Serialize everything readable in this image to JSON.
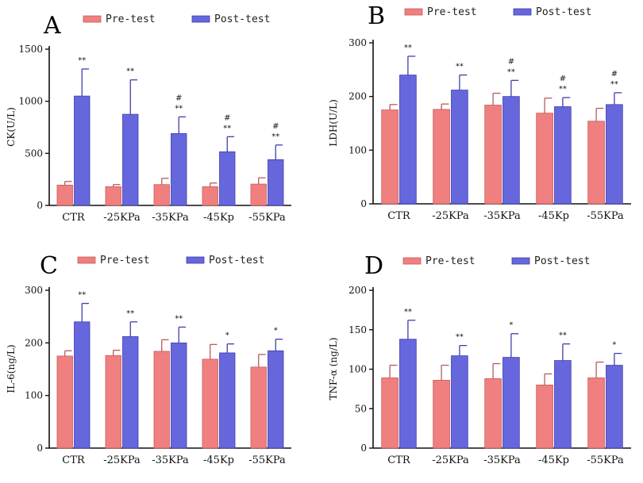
{
  "colors": {
    "pre_fill": "#f07f7f",
    "pre_stroke": "#c95c5c",
    "post_fill": "#6666dd",
    "post_stroke": "#3f3fae",
    "error_pre": "#b45c5c",
    "error_post": "#3f3fae",
    "axis": "#111111"
  },
  "legend": {
    "pre": "Pre-test",
    "post": "Post-test"
  },
  "chart_data": [
    {
      "panel": "A",
      "type": "bar",
      "ylabel": "CK(U/L)",
      "ylim": [
        0,
        1500
      ],
      "yticks": [
        0,
        500,
        1000,
        1500
      ],
      "categories": [
        "CTR",
        "-25KPa",
        "-35KPa",
        "-45Kp",
        "-55KPa"
      ],
      "series": [
        {
          "name": "Pre-test",
          "values": [
            195,
            180,
            200,
            180,
            205
          ],
          "errors": [
            35,
            20,
            60,
            35,
            60
          ]
        },
        {
          "name": "Post-test",
          "values": [
            1050,
            875,
            690,
            515,
            440
          ],
          "errors": [
            260,
            330,
            160,
            145,
            140
          ]
        }
      ],
      "annotations": [
        [
          "**"
        ],
        [
          "**"
        ],
        [
          "#",
          "**"
        ],
        [
          "#",
          "**"
        ],
        [
          "#",
          "**"
        ]
      ]
    },
    {
      "panel": "B",
      "type": "bar",
      "ylabel": "LDH(U/L)",
      "ylim": [
        0,
        300
      ],
      "yticks": [
        0,
        100,
        200,
        300
      ],
      "categories": [
        "CTR",
        "-25KPa",
        "-35KPa",
        "-45Kp",
        "-55KPa"
      ],
      "series": [
        {
          "name": "Pre-test",
          "values": [
            175,
            176,
            184,
            169,
            154
          ],
          "errors": [
            10,
            10,
            22,
            28,
            24
          ]
        },
        {
          "name": "Post-test",
          "values": [
            240,
            212,
            200,
            181,
            185
          ],
          "errors": [
            35,
            28,
            30,
            17,
            22
          ]
        }
      ],
      "annotations": [
        [
          "**"
        ],
        [
          "**"
        ],
        [
          "#",
          "**"
        ],
        [
          "#",
          "**"
        ],
        [
          "#",
          "**"
        ]
      ]
    },
    {
      "panel": "C",
      "type": "bar",
      "ylabel": "IL-6(ng/L)",
      "ylim": [
        0,
        300
      ],
      "yticks": [
        0,
        100,
        200,
        300
      ],
      "categories": [
        "CTR",
        "-25KPa",
        "-35KPa",
        "-45Kp",
        "-55KPa"
      ],
      "series": [
        {
          "name": "Pre-test",
          "values": [
            175,
            176,
            184,
            169,
            154
          ],
          "errors": [
            10,
            10,
            22,
            28,
            24
          ]
        },
        {
          "name": "Post-test",
          "values": [
            240,
            212,
            200,
            181,
            185
          ],
          "errors": [
            35,
            28,
            30,
            17,
            22
          ]
        }
      ],
      "annotations": [
        [
          "**"
        ],
        [
          "**"
        ],
        [
          "**"
        ],
        [
          "*"
        ],
        [
          "*"
        ]
      ]
    },
    {
      "panel": "D",
      "type": "bar",
      "ylabel": "TNF-α (ng/L)",
      "ylim": [
        0,
        200
      ],
      "yticks": [
        0,
        50,
        100,
        150,
        200
      ],
      "categories": [
        "CTR",
        "-25KPa",
        "-35KPa",
        "-45Kp",
        "-55KPa"
      ],
      "series": [
        {
          "name": "Pre-test",
          "values": [
            89,
            86,
            88,
            80,
            89
          ],
          "errors": [
            16,
            19,
            19,
            14,
            20
          ]
        },
        {
          "name": "Post-test",
          "values": [
            138,
            117,
            115,
            111,
            105
          ],
          "errors": [
            24,
            13,
            30,
            21,
            15
          ]
        }
      ],
      "annotations": [
        [
          "**"
        ],
        [
          "**"
        ],
        [
          "*"
        ],
        [
          "**"
        ],
        [
          "*"
        ]
      ]
    }
  ]
}
